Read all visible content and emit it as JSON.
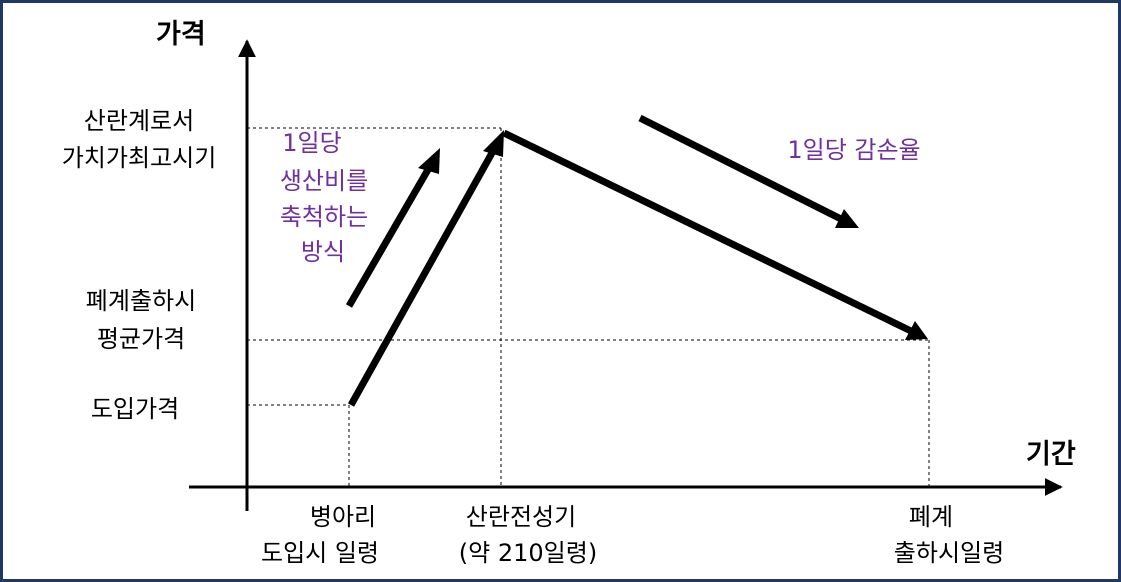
{
  "axes": {
    "y_title": "가격",
    "x_title": "기간"
  },
  "y_labels": {
    "peak": [
      "산란계로서",
      "가치가최고시기"
    ],
    "cull_avg": [
      "폐계출하시",
      "평균가격"
    ],
    "intro": "도입가격"
  },
  "x_labels": {
    "chick": [
      "병아리",
      "도입시 일령"
    ],
    "peak_laying": [
      "산란전성기",
      "(약 210일령)"
    ],
    "cull": [
      "폐계",
      "출하시일령"
    ]
  },
  "annotations": {
    "accumulate": [
      "1일당",
      "생산비를",
      "축척하는",
      "방식"
    ],
    "depreciation": "1일당 감손율"
  },
  "colors": {
    "border": "#1f3864",
    "annotation": "#7030a0",
    "lines": "#000000"
  }
}
